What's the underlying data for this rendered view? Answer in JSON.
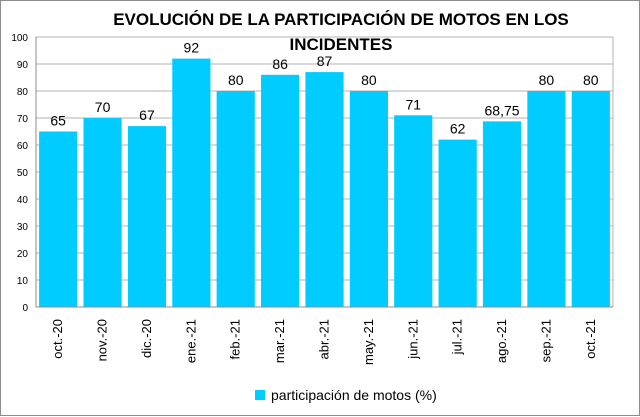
{
  "chart_data": {
    "type": "bar",
    "title": "EVOLUCIÓN DE LA PARTICIPACIÓN DE MOTOS EN LOS INCIDENTES",
    "categories": [
      "oct.-20",
      "nov.-20",
      "dic.-20",
      "ene.-21",
      "feb.-21",
      "mar.-21",
      "abr.-21",
      "may.-21",
      "jun.-21",
      "jul.-21",
      "ago.-21",
      "sep.-21",
      "oct.-21"
    ],
    "series": [
      {
        "name": "participación de motos (%)",
        "values": [
          65,
          70,
          67,
          92,
          80,
          86,
          87,
          80,
          71,
          62,
          68.75,
          80,
          80
        ],
        "labels": [
          "65",
          "70",
          "67",
          "92",
          "80",
          "86",
          "87",
          "80",
          "71",
          "62",
          "68,75",
          "80",
          "80"
        ]
      }
    ],
    "xlabel": "",
    "ylabel": "",
    "ylim": [
      0,
      100
    ],
    "yticks": [
      "0",
      "10",
      "20",
      "30",
      "40",
      "50",
      "60",
      "70",
      "80",
      "90",
      "100"
    ],
    "grid": true,
    "legend_position": "bottom",
    "bar_color": "#00ccff"
  }
}
